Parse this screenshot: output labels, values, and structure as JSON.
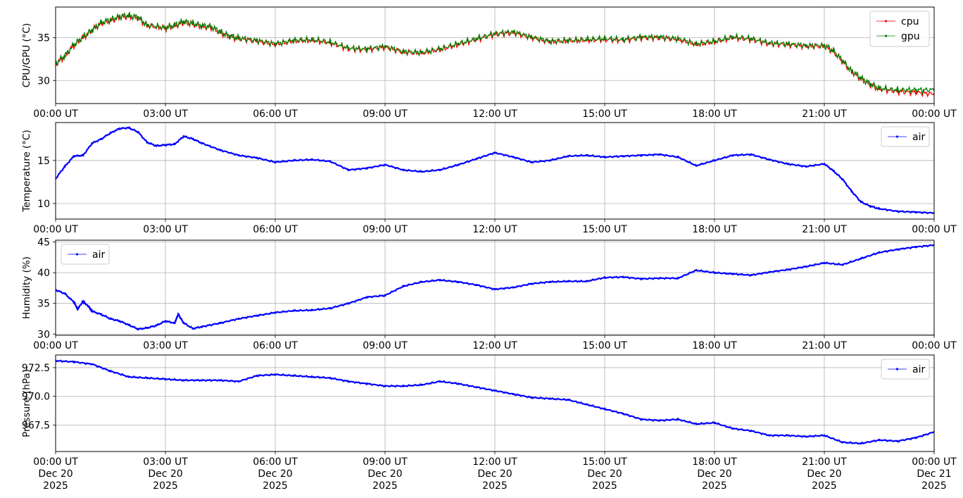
{
  "chart_data": [
    {
      "type": "line",
      "ylabel": "CPU/GPU (°C)",
      "ylim": [
        27.3,
        38.6
      ],
      "yticks": [
        30,
        35
      ],
      "x_ticks": [
        "00:00 UT",
        "03:00 UT",
        "06:00 UT",
        "09:00 UT",
        "12:00 UT",
        "15:00 UT",
        "18:00 UT",
        "21:00 UT",
        "00:00 UT"
      ],
      "x_tick_hours": [
        0,
        3,
        6,
        9,
        12,
        15,
        18,
        21,
        24
      ],
      "xlim": [
        0,
        24
      ],
      "grid": true,
      "legend": "top-right",
      "series": [
        {
          "name": "cpu",
          "color": "#ff0000",
          "x": [
            0,
            0.25,
            0.5,
            0.75,
            1.0,
            1.25,
            1.5,
            1.75,
            2.0,
            2.25,
            2.5,
            3.0,
            3.25,
            3.5,
            3.75,
            4.0,
            4.25,
            4.5,
            4.75,
            5.0,
            5.5,
            6.0,
            6.5,
            7.0,
            7.5,
            8.0,
            8.5,
            9.0,
            9.5,
            10.0,
            10.5,
            11.0,
            11.5,
            12.0,
            12.5,
            13.0,
            13.5,
            14.0,
            14.5,
            15.0,
            15.5,
            16.0,
            16.5,
            17.0,
            17.5,
            18.0,
            18.5,
            19.0,
            19.5,
            20.0,
            20.5,
            21.0,
            21.25,
            21.5,
            21.75,
            22.0,
            22.25,
            22.5,
            23.0,
            23.5,
            24.0
          ],
          "values": [
            31.9,
            32.8,
            34.1,
            35.0,
            35.9,
            36.7,
            37.0,
            37.4,
            37.5,
            37.3,
            36.4,
            36.1,
            36.4,
            36.8,
            36.6,
            36.3,
            36.2,
            35.6,
            35.1,
            34.9,
            34.6,
            34.2,
            34.6,
            34.7,
            34.4,
            33.7,
            33.6,
            33.9,
            33.3,
            33.2,
            33.6,
            34.2,
            34.8,
            35.4,
            35.6,
            35.0,
            34.5,
            34.6,
            34.7,
            34.8,
            34.7,
            35.0,
            35.0,
            34.8,
            34.2,
            34.5,
            35.0,
            34.8,
            34.3,
            34.2,
            34.0,
            34.0,
            33.4,
            32.2,
            31.0,
            30.2,
            29.5,
            29.0,
            28.7,
            28.6,
            28.4
          ]
        },
        {
          "name": "gpu",
          "color": "#008000",
          "x": [
            0,
            0.25,
            0.5,
            0.75,
            1.0,
            1.25,
            1.5,
            1.75,
            2.0,
            2.25,
            2.5,
            3.0,
            3.25,
            3.5,
            3.75,
            4.0,
            4.25,
            4.5,
            4.75,
            5.0,
            5.5,
            6.0,
            6.5,
            7.0,
            7.5,
            8.0,
            8.5,
            9.0,
            9.5,
            10.0,
            10.5,
            11.0,
            11.5,
            12.0,
            12.5,
            13.0,
            13.5,
            14.0,
            14.5,
            15.0,
            15.5,
            16.0,
            16.5,
            17.0,
            17.5,
            18.0,
            18.5,
            19.0,
            19.5,
            20.0,
            20.5,
            21.0,
            21.25,
            21.5,
            21.75,
            22.0,
            22.25,
            22.5,
            23.0,
            23.5,
            24.0
          ],
          "values": [
            32.0,
            32.9,
            34.2,
            35.1,
            35.9,
            36.8,
            37.1,
            37.5,
            37.6,
            37.4,
            36.5,
            36.2,
            36.5,
            36.9,
            36.7,
            36.4,
            36.3,
            35.7,
            35.2,
            35.0,
            34.7,
            34.3,
            34.7,
            34.8,
            34.5,
            33.8,
            33.7,
            34.0,
            33.4,
            33.3,
            33.7,
            34.3,
            34.9,
            35.5,
            35.7,
            35.1,
            34.6,
            34.7,
            34.8,
            34.9,
            34.8,
            35.1,
            35.1,
            34.9,
            34.3,
            34.6,
            35.1,
            34.9,
            34.4,
            34.3,
            34.1,
            34.1,
            33.5,
            32.3,
            31.1,
            30.3,
            29.6,
            29.1,
            28.9,
            28.9,
            28.9
          ]
        }
      ]
    },
    {
      "type": "line",
      "ylabel": "Temperature (°C)",
      "ylim": [
        8.2,
        19.4
      ],
      "yticks": [
        10,
        15
      ],
      "x_ticks": [
        "00:00 UT",
        "03:00 UT",
        "06:00 UT",
        "09:00 UT",
        "12:00 UT",
        "15:00 UT",
        "18:00 UT",
        "21:00 UT",
        "00:00 UT"
      ],
      "x_tick_hours": [
        0,
        3,
        6,
        9,
        12,
        15,
        18,
        21,
        24
      ],
      "xlim": [
        0,
        24
      ],
      "grid": true,
      "legend": "top-right",
      "series": [
        {
          "name": "air",
          "color": "#0000ff",
          "x": [
            0,
            0.25,
            0.5,
            0.75,
            1.0,
            1.25,
            1.5,
            1.75,
            2.0,
            2.25,
            2.5,
            2.75,
            3.0,
            3.25,
            3.5,
            3.75,
            4.0,
            4.5,
            5.0,
            5.5,
            6.0,
            6.5,
            7.0,
            7.5,
            8.0,
            8.5,
            9.0,
            9.5,
            10.0,
            10.5,
            11.0,
            11.5,
            12.0,
            12.5,
            13.0,
            13.5,
            14.0,
            14.5,
            15.0,
            15.5,
            16.0,
            16.5,
            17.0,
            17.5,
            18.0,
            18.5,
            19.0,
            19.5,
            20.0,
            20.5,
            21.0,
            21.25,
            21.5,
            21.75,
            22.0,
            22.25,
            22.5,
            23.0,
            23.5,
            24.0
          ],
          "values": [
            12.9,
            14.3,
            15.5,
            15.6,
            17.0,
            17.5,
            18.2,
            18.7,
            18.8,
            18.3,
            17.1,
            16.7,
            16.8,
            16.9,
            17.8,
            17.5,
            17.0,
            16.2,
            15.6,
            15.3,
            14.8,
            15.0,
            15.1,
            14.9,
            13.9,
            14.1,
            14.5,
            13.9,
            13.7,
            13.9,
            14.5,
            15.2,
            15.9,
            15.4,
            14.8,
            15.0,
            15.5,
            15.6,
            15.4,
            15.5,
            15.6,
            15.7,
            15.4,
            14.4,
            15.0,
            15.6,
            15.7,
            15.1,
            14.6,
            14.3,
            14.6,
            13.8,
            12.8,
            11.4,
            10.2,
            9.7,
            9.4,
            9.1,
            9.0,
            8.9
          ]
        }
      ]
    },
    {
      "type": "line",
      "ylabel": "Humidity (%)",
      "ylim": [
        29.8,
        45.3
      ],
      "yticks": [
        30,
        35,
        40,
        45
      ],
      "x_ticks": [
        "00:00 UT",
        "03:00 UT",
        "06:00 UT",
        "09:00 UT",
        "12:00 UT",
        "15:00 UT",
        "18:00 UT",
        "21:00 UT",
        "00:00 UT"
      ],
      "x_tick_hours": [
        0,
        3,
        6,
        9,
        12,
        15,
        18,
        21,
        24
      ],
      "xlim": [
        0,
        24
      ],
      "grid": true,
      "legend": "top-left",
      "series": [
        {
          "name": "air",
          "color": "#0000ff",
          "x": [
            0,
            0.25,
            0.5,
            0.6,
            0.75,
            0.9,
            1.0,
            1.25,
            1.5,
            1.75,
            2.0,
            2.25,
            2.5,
            2.75,
            3.0,
            3.25,
            3.35,
            3.5,
            3.75,
            4.0,
            4.5,
            5.0,
            5.5,
            6.0,
            6.5,
            7.0,
            7.5,
            8.0,
            8.5,
            9.0,
            9.5,
            10.0,
            10.5,
            11.0,
            11.5,
            12.0,
            12.5,
            13.0,
            13.5,
            14.0,
            14.5,
            15.0,
            15.5,
            16.0,
            16.5,
            17.0,
            17.5,
            18.0,
            18.5,
            19.0,
            19.5,
            20.0,
            20.5,
            21.0,
            21.5,
            22.0,
            22.5,
            23.0,
            23.5,
            24.0
          ],
          "values": [
            37.2,
            36.6,
            35.2,
            34.1,
            35.3,
            34.5,
            33.7,
            33.2,
            32.5,
            32.1,
            31.5,
            30.8,
            31.0,
            31.4,
            32.1,
            31.8,
            33.2,
            31.8,
            30.9,
            31.2,
            31.8,
            32.5,
            33.0,
            33.5,
            33.8,
            33.9,
            34.2,
            35.0,
            36.0,
            36.3,
            37.8,
            38.5,
            38.8,
            38.5,
            38.0,
            37.3,
            37.6,
            38.2,
            38.5,
            38.6,
            38.6,
            39.2,
            39.3,
            39.0,
            39.1,
            39.1,
            40.4,
            40.0,
            39.8,
            39.6,
            40.1,
            40.5,
            41.0,
            41.6,
            41.3,
            42.3,
            43.3,
            43.8,
            44.2,
            44.5
          ]
        }
      ]
    },
    {
      "type": "line",
      "ylabel": "Pressure (hPa)",
      "ylim": [
        965.2,
        973.6
      ],
      "yticks": [
        967.5,
        970.0,
        972.5
      ],
      "x_ticks": [
        "00:00 UT\nDec 20\n2025",
        "03:00 UT\nDec 20\n2025",
        "06:00 UT\nDec 20\n2025",
        "09:00 UT\nDec 20\n2025",
        "12:00 UT\nDec 20\n2025",
        "15:00 UT\nDec 20\n2025",
        "18:00 UT\nDec 20\n2025",
        "21:00 UT\nDec 20\n2025",
        "00:00 UT\nDec 21\n2025"
      ],
      "x_tick_hours": [
        0,
        3,
        6,
        9,
        12,
        15,
        18,
        21,
        24
      ],
      "xlim": [
        0,
        24
      ],
      "grid": true,
      "legend": "top-right",
      "series": [
        {
          "name": "air",
          "color": "#0000ff",
          "x": [
            0,
            0.5,
            1.0,
            1.5,
            2.0,
            2.5,
            3.0,
            3.5,
            4.0,
            4.5,
            5.0,
            5.5,
            6.0,
            6.5,
            7.0,
            7.5,
            8.0,
            8.5,
            9.0,
            9.5,
            10.0,
            10.5,
            11.0,
            11.5,
            12.0,
            12.5,
            13.0,
            13.5,
            14.0,
            14.5,
            15.0,
            15.5,
            16.0,
            16.5,
            17.0,
            17.5,
            18.0,
            18.5,
            19.0,
            19.5,
            20.0,
            20.5,
            21.0,
            21.5,
            22.0,
            22.5,
            23.0,
            23.5,
            24.0
          ],
          "values": [
            973.1,
            973.0,
            972.8,
            972.2,
            971.7,
            971.6,
            971.5,
            971.4,
            971.4,
            971.4,
            971.3,
            971.8,
            971.9,
            971.8,
            971.7,
            971.6,
            971.3,
            971.1,
            970.9,
            970.9,
            971.0,
            971.3,
            971.1,
            970.8,
            970.5,
            970.2,
            969.9,
            969.8,
            969.7,
            969.3,
            968.9,
            968.5,
            968.0,
            967.9,
            968.0,
            967.6,
            967.7,
            967.2,
            967.0,
            966.6,
            966.6,
            966.5,
            966.6,
            966.0,
            965.9,
            966.2,
            966.1,
            966.4,
            966.9
          ]
        }
      ]
    }
  ]
}
